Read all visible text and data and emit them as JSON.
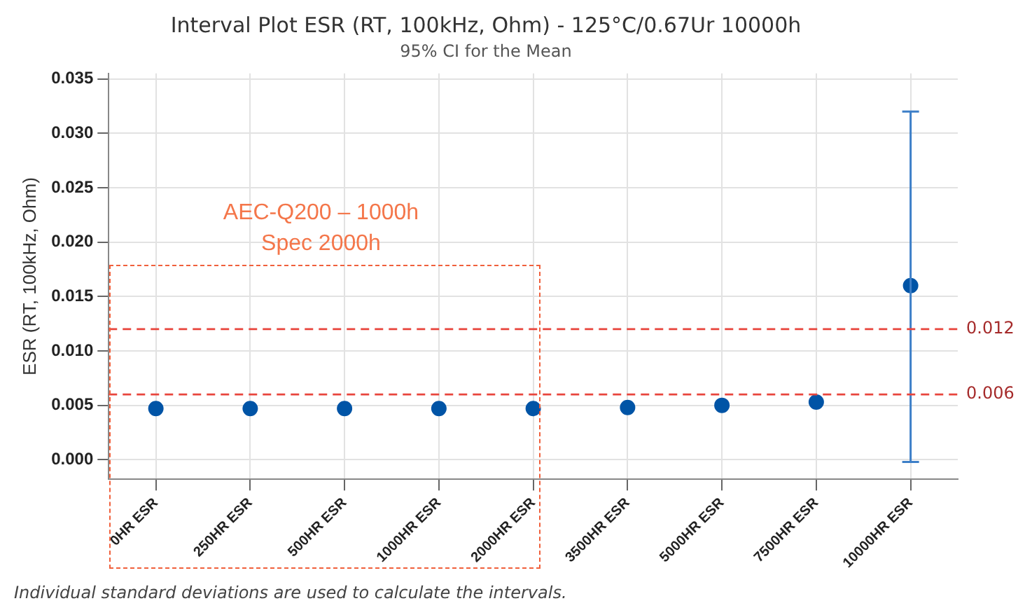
{
  "chart_data": {
    "type": "scatter",
    "title": "Interval Plot ESR (RT, 100kHz, Ohm) - 125°C/0.67Ur 10000h",
    "subtitle": "95% CI for the Mean",
    "ylabel": "ESR (RT, 100kHz, Ohm)",
    "categories": [
      "0HR ESR",
      "250HR ESR",
      "500HR ESR",
      "1000HR ESR",
      "2000HR ESR",
      "3500HR ESR",
      "5000HR ESR",
      "7500HR ESR",
      "10000HR ESR"
    ],
    "series": [
      {
        "color": "#0054a6",
        "values": [
          0.0047,
          0.0047,
          0.0047,
          0.0047,
          0.0047,
          0.0048,
          0.005,
          0.0053,
          0.016
        ],
        "errors": [
          null,
          null,
          null,
          null,
          null,
          null,
          null,
          null,
          [
            -0.0002,
            0.032
          ]
        ]
      }
    ],
    "ylim": [
      -0.0018,
      0.0355
    ],
    "yticks": [
      {
        "value": 0,
        "label": "0.000"
      },
      0.005,
      {
        "value": 0.01,
        "label": "0.010"
      },
      0.015,
      {
        "value": 0.02,
        "label": "0.020"
      },
      0.025,
      {
        "value": 0.03,
        "label": "0.030"
      },
      0.035
    ],
    "ref_lines": [
      {
        "axis": "y",
        "value": 0.012,
        "label": "0.012",
        "color": "#e8453c",
        "line_style": "dashed"
      },
      {
        "axis": "y",
        "value": 0.006,
        "label": "0.006",
        "color": "#e8453c",
        "line_style": "dashed"
      }
    ],
    "annotations": [
      "AEC-Q200 – 1000h\nSpec 2000h",
      "Individual standard deviations are used to calculate the intervals."
    ],
    "grid": true,
    "marker": "circle"
  }
}
